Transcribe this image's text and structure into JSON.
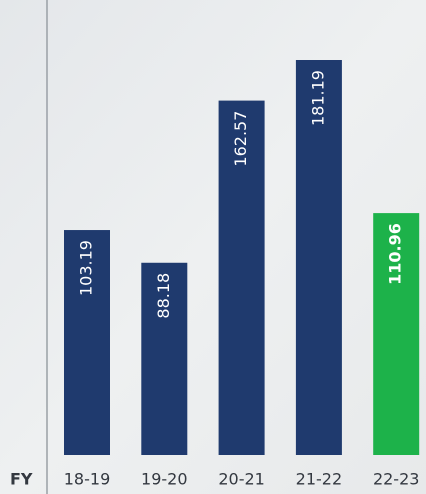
{
  "chart_data": {
    "type": "bar",
    "x_label": "FY",
    "categories": [
      "18-19",
      "19-20",
      "20-21",
      "21-22",
      "22-23"
    ],
    "values": [
      103.19,
      88.18,
      162.57,
      181.19,
      110.96
    ],
    "colors": [
      "#1f3a6e",
      "#1f3a6e",
      "#1f3a6e",
      "#1f3a6e",
      "#1db24a"
    ]
  }
}
